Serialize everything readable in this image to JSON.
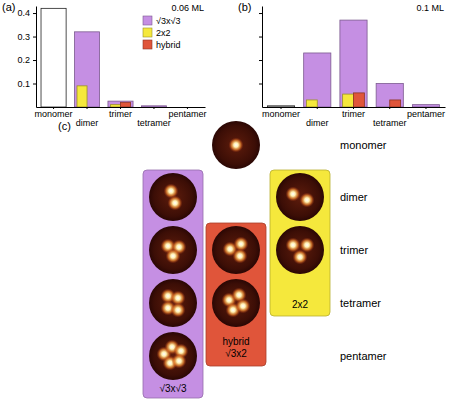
{
  "chart_data": [
    {
      "type": "bar",
      "title": "(a)",
      "annotations": [
        "0.06 ML"
      ],
      "categories": [
        "monomer",
        "dimer",
        "trimer",
        "tetramer",
        "pentamer"
      ],
      "series": [
        {
          "color": "#ffffff",
          "values": [
            0.42,
            null,
            null,
            null,
            null
          ]
        },
        {
          "name": "√3x√3",
          "color": "#c58fe3",
          "values": [
            null,
            0.32,
            0.025,
            0.005,
            null
          ]
        },
        {
          "name": "2x2",
          "color": "#f5e83c",
          "values": [
            null,
            0.09,
            0.01,
            null,
            null
          ]
        },
        {
          "name": "hybrid",
          "color": "#e0553a",
          "values": [
            null,
            null,
            0.02,
            null,
            null
          ]
        }
      ],
      "ylim": [
        0,
        0.43
      ],
      "yticks": [
        0.1,
        0.2,
        0.3,
        0.4
      ],
      "legend": "upper right"
    },
    {
      "type": "bar",
      "title": "(b)",
      "annotations": [
        "0.1 ML"
      ],
      "categories": [
        "monomer",
        "dimer",
        "trimer",
        "tetramer",
        "pentamer"
      ],
      "series": [
        {
          "color": "#ffffff",
          "values": [
            0.005,
            null,
            null,
            null,
            null
          ]
        },
        {
          "name": "√3x√3",
          "color": "#c58fe3",
          "values": [
            null,
            0.23,
            0.37,
            0.1,
            0.01
          ]
        },
        {
          "name": "2x2",
          "color": "#f5e83c",
          "values": [
            null,
            0.03,
            0.055,
            null,
            null
          ]
        },
        {
          "name": "hybrid",
          "color": "#e0553a",
          "values": [
            null,
            null,
            0.06,
            0.03,
            null
          ]
        }
      ],
      "ylim": [
        0,
        0.43
      ],
      "yticks": [
        0.1,
        0.2,
        0.3,
        0.4
      ],
      "tick_labels": "x"
    }
  ],
  "panel_c": {
    "label": "(c)",
    "rows": [
      "monomer",
      "dimer",
      "trimer",
      "tetramer",
      "pentamer"
    ],
    "ungrouped": [
      "monomer"
    ],
    "groups": [
      {
        "label": [
          "√3x√3"
        ],
        "color": "#c58fe3",
        "rows": [
          "dimer",
          "trimer",
          "tetramer",
          "pentamer"
        ]
      },
      {
        "label": [
          "hybrid",
          "√3x2"
        ],
        "color": "#e0553a",
        "rows": [
          "trimer",
          "tetramer"
        ]
      },
      {
        "label": [
          "2x2"
        ],
        "color": "#f5e83c",
        "rows": [
          "dimer",
          "trimer"
        ]
      }
    ]
  }
}
